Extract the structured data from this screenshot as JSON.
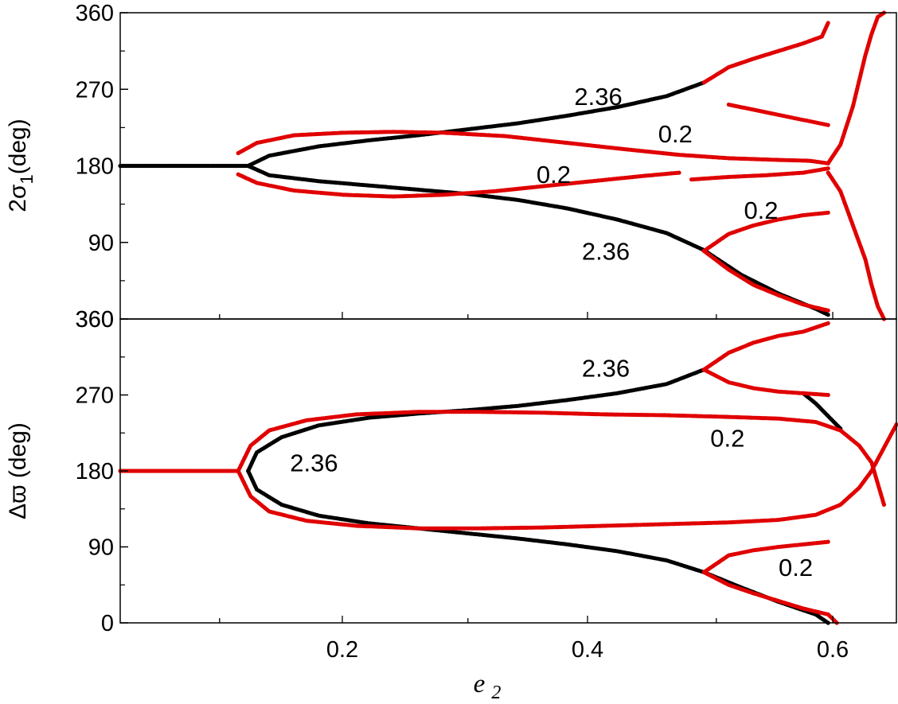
{
  "chart_data": [
    {
      "type": "scatter",
      "panel": "top",
      "ylabel_main": "2σ",
      "ylabel_sub": "1",
      "ylabel_tail": "(deg)",
      "xlim": [
        0.02,
        0.645
      ],
      "ylim": [
        0,
        360
      ],
      "yticks": [
        {
          "v": 0,
          "label": "360"
        },
        {
          "v": 90,
          "label": "90"
        },
        {
          "v": 180,
          "label": "180"
        },
        {
          "v": 270,
          "label": "270"
        },
        {
          "v": 360,
          "label": "360"
        }
      ],
      "series": [
        {
          "color": "#000000",
          "curves": [
            {
              "x": [
                0.02,
                0.05,
                0.08,
                0.11,
                0.123
              ],
              "y": [
                180,
                180,
                180,
                180,
                180
              ]
            },
            {
              "x": [
                0.123,
                0.14,
                0.18,
                0.22,
                0.26,
                0.3,
                0.34,
                0.38,
                0.42,
                0.46,
                0.49
              ],
              "y": [
                180,
                192,
                203,
                210,
                216,
                223,
                230,
                239,
                249,
                262,
                278
              ]
            },
            {
              "x": [
                0.123,
                0.14,
                0.18,
                0.22,
                0.26,
                0.3,
                0.34,
                0.38,
                0.42,
                0.46,
                0.49,
                0.52,
                0.55,
                0.58,
                0.59
              ],
              "y": [
                180,
                169,
                162,
                157,
                152,
                147,
                140,
                130,
                117,
                101,
                81,
                52,
                30,
                12,
                5
              ]
            }
          ]
        },
        {
          "color": "#e00000",
          "curves": [
            {
              "x": [
                0.115,
                0.13,
                0.16,
                0.2,
                0.24,
                0.28,
                0.33,
                0.38,
                0.43,
                0.47,
                0.51,
                0.55,
                0.575,
                0.59
              ],
              "y": [
                195,
                207,
                216,
                219,
                220,
                219,
                215,
                207,
                199,
                193,
                189,
                187,
                186,
                183
              ]
            },
            {
              "x": [
                0.115,
                0.13,
                0.16,
                0.2,
                0.24,
                0.28,
                0.32,
                0.36,
                0.4,
                0.44,
                0.47
              ],
              "y": [
                170,
                160,
                151,
                146,
                144,
                146,
                150,
                156,
                162,
                168,
                172
              ]
            },
            {
              "x": [
                0.49,
                0.51,
                0.53,
                0.55,
                0.57,
                0.585,
                0.59
              ],
              "y": [
                278,
                296,
                306,
                315,
                324,
                332,
                348
              ]
            },
            {
              "x": [
                0.51,
                0.53,
                0.55,
                0.57,
                0.59
              ],
              "y": [
                252,
                246,
                240,
                234,
                228
              ]
            },
            {
              "x": [
                0.48,
                0.51,
                0.54,
                0.57,
                0.59
              ],
              "y": [
                164,
                167,
                169,
                172,
                177
              ]
            },
            {
              "x": [
                0.59,
                0.6,
                0.61,
                0.615,
                0.62,
                0.625,
                0.63,
                0.635
              ],
              "y": [
                183,
                205,
                250,
                280,
                310,
                335,
                355,
                360
              ]
            },
            {
              "x": [
                0.59,
                0.6,
                0.61,
                0.62,
                0.625,
                0.63,
                0.635
              ],
              "y": [
                172,
                150,
                110,
                70,
                40,
                15,
                0
              ]
            },
            {
              "x": [
                0.49,
                0.51,
                0.53,
                0.55,
                0.57,
                0.59
              ],
              "y": [
                80,
                100,
                110,
                117,
                122,
                125
              ]
            },
            {
              "x": [
                0.49,
                0.51,
                0.53,
                0.55,
                0.57,
                0.59
              ],
              "y": [
                80,
                58,
                40,
                28,
                17,
                10
              ]
            }
          ]
        }
      ],
      "annotations": [
        {
          "text": "2.36",
          "x": 0.405,
          "y": 262
        },
        {
          "text": "0.2",
          "x": 0.467,
          "y": 218
        },
        {
          "text": "0.2",
          "x": 0.369,
          "y": 170
        },
        {
          "text": "0.2",
          "x": 0.536,
          "y": 128
        },
        {
          "text": "2.36",
          "x": 0.411,
          "y": 80
        }
      ]
    },
    {
      "type": "scatter",
      "panel": "bottom",
      "ylabel": "Δϖ (deg)",
      "xlabel": "e",
      "xlabel_sub": "2",
      "xlim": [
        0.02,
        0.645
      ],
      "ylim": [
        0,
        360
      ],
      "xticks": [
        {
          "v": 0.2,
          "label": "0.2"
        },
        {
          "v": 0.4,
          "label": "0.4"
        },
        {
          "v": 0.6,
          "label": "0.6"
        }
      ],
      "yticks": [
        {
          "v": 0,
          "label": "0"
        },
        {
          "v": 90,
          "label": "90"
        },
        {
          "v": 180,
          "label": "180"
        },
        {
          "v": 270,
          "label": "270"
        },
        {
          "v": 360,
          "label": "360"
        }
      ],
      "series": [
        {
          "color": "#000000",
          "curves": [
            {
              "x": [
                0.123,
                0.13,
                0.15,
                0.18,
                0.22,
                0.26,
                0.3,
                0.34,
                0.38,
                0.42,
                0.46,
                0.49
              ],
              "y": [
                180,
                202,
                220,
                234,
                243,
                248,
                252,
                257,
                264,
                272,
                283,
                300
              ]
            },
            {
              "x": [
                0.123,
                0.13,
                0.15,
                0.18,
                0.22,
                0.26,
                0.3,
                0.34,
                0.38,
                0.42,
                0.46,
                0.49,
                0.52,
                0.55,
                0.58,
                0.59
              ],
              "y": [
                180,
                158,
                140,
                127,
                118,
                112,
                106,
                100,
                93,
                85,
                74,
                60,
                42,
                25,
                10,
                0
              ]
            },
            {
              "x": [
                0.57,
                0.58,
                0.59,
                0.6
              ],
              "y": [
                272,
                260,
                245,
                230
              ]
            }
          ]
        },
        {
          "color": "#e00000",
          "curves": [
            {
              "x": [
                0.02,
                0.05,
                0.08,
                0.11,
                0.115
              ],
              "y": [
                180,
                180,
                180,
                180,
                180
              ]
            },
            {
              "x": [
                0.115,
                0.125,
                0.14,
                0.17,
                0.21,
                0.26,
                0.31,
                0.36,
                0.41,
                0.46,
                0.51,
                0.55,
                0.58,
                0.6,
                0.615,
                0.625,
                0.635
              ],
              "y": [
                180,
                210,
                228,
                240,
                247,
                250,
                250,
                249,
                247,
                246,
                244,
                242,
                238,
                228,
                210,
                190,
                140
              ]
            },
            {
              "x": [
                0.115,
                0.125,
                0.14,
                0.17,
                0.21,
                0.26,
                0.31,
                0.36,
                0.41,
                0.46,
                0.51,
                0.55,
                0.58,
                0.6,
                0.615,
                0.625,
                0.645
              ],
              "y": [
                180,
                150,
                132,
                121,
                115,
                112,
                112,
                113,
                115,
                117,
                119,
                122,
                128,
                140,
                160,
                180,
                235
              ]
            },
            {
              "x": [
                0.49,
                0.51,
                0.53,
                0.55,
                0.57,
                0.59
              ],
              "y": [
                300,
                320,
                332,
                340,
                345,
                355
              ]
            },
            {
              "x": [
                0.49,
                0.51,
                0.53,
                0.55,
                0.57,
                0.59
              ],
              "y": [
                300,
                285,
                278,
                274,
                272,
                270
              ]
            },
            {
              "x": [
                0.49,
                0.51,
                0.53,
                0.55,
                0.57,
                0.59
              ],
              "y": [
                60,
                80,
                86,
                90,
                93,
                96
              ]
            },
            {
              "x": [
                0.49,
                0.51,
                0.53,
                0.55,
                0.57,
                0.59,
                0.597
              ],
              "y": [
                60,
                45,
                35,
                26,
                17,
                10,
                0
              ]
            }
          ]
        }
      ],
      "annotations": [
        {
          "text": "2.36",
          "x": 0.411,
          "y": 302
        },
        {
          "text": "0.2",
          "x": 0.509,
          "y": 219
        },
        {
          "text": "2.36",
          "x": 0.176,
          "y": 190
        },
        {
          "text": "0.2",
          "x": 0.564,
          "y": 66
        }
      ]
    }
  ]
}
